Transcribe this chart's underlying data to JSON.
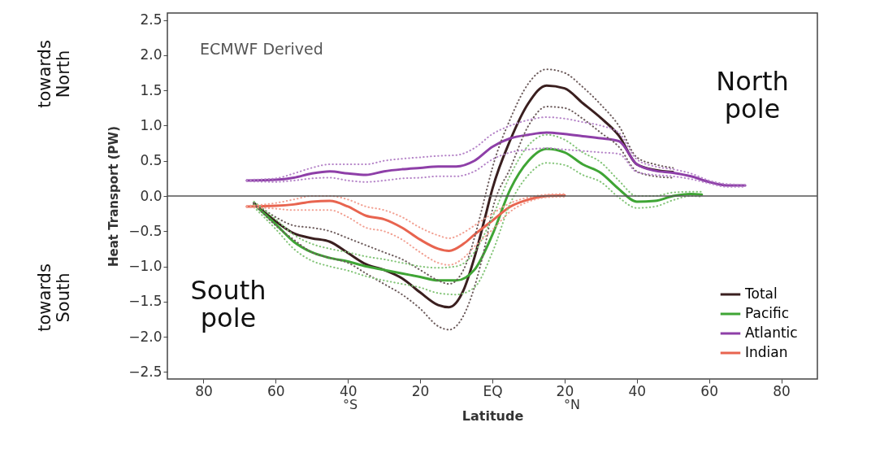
{
  "chart_data": {
    "type": "line",
    "xlabel": "Latitude",
    "ylabel": "Heat Transport (PW)",
    "xlim": [
      -90,
      90
    ],
    "ylim": [
      -2.6,
      2.6
    ],
    "xticks": [
      {
        "value": -80,
        "label": "80"
      },
      {
        "value": -60,
        "label": "60"
      },
      {
        "value": -40,
        "label": "40"
      },
      {
        "value": -20,
        "label": "20"
      },
      {
        "value": 0,
        "label": "EQ"
      },
      {
        "value": 20,
        "label": "20"
      },
      {
        "value": 40,
        "label": "40"
      },
      {
        "value": 60,
        "label": "60"
      },
      {
        "value": 80,
        "label": "80"
      }
    ],
    "yticks": [
      {
        "value": -2.5,
        "label": "−2.5"
      },
      {
        "value": -2,
        "label": "−2.0"
      },
      {
        "value": -1.5,
        "label": "−1.5"
      },
      {
        "value": -1,
        "label": "−1.0"
      },
      {
        "value": -0.5,
        "label": "−0.5"
      },
      {
        "value": 0,
        "label": "0.0"
      },
      {
        "value": 0.5,
        "label": "0.5"
      },
      {
        "value": 1,
        "label": "1.0"
      },
      {
        "value": 1.5,
        "label": "1.5"
      },
      {
        "value": 2,
        "label": "2.0"
      },
      {
        "value": 2.5,
        "label": "2.5"
      }
    ],
    "grid": false,
    "legend": "bottom right",
    "marker": "none",
    "ref_lines": [
      {
        "axis": "y",
        "value": 0,
        "color": "#555555"
      }
    ],
    "annotations": [
      "ECMWF Derived",
      "North pole",
      "South pole",
      "towards North",
      "towards South",
      "°S",
      "°N"
    ],
    "series": [
      {
        "name": "Total",
        "color": "#3a1f1f",
        "line_style": "solid",
        "x": [
          -66,
          -60,
          -55,
          -50,
          -45,
          -40,
          -35,
          -30,
          -25,
          -20,
          -15,
          -12,
          -8,
          -5,
          -2,
          0,
          5,
          10,
          15,
          20,
          25,
          30,
          35,
          40,
          45,
          50
        ],
        "values": [
          -0.1,
          -0.36,
          -0.53,
          -0.6,
          -0.65,
          -0.81,
          -0.97,
          -1.05,
          -1.17,
          -1.37,
          -1.55,
          -1.58,
          -1.34,
          -0.88,
          -0.3,
          0.1,
          0.8,
          1.32,
          1.57,
          1.53,
          1.32,
          1.11,
          0.86,
          0.45,
          0.37,
          0.34
        ]
      },
      {
        "name": "Pacific",
        "color": "#3fa535",
        "line_style": "solid",
        "x": [
          -66,
          -60,
          -55,
          -50,
          -45,
          -40,
          -35,
          -30,
          -25,
          -20,
          -15,
          -10,
          -5,
          0,
          5,
          10,
          15,
          20,
          25,
          30,
          35,
          40,
          45,
          50,
          55,
          58
        ],
        "values": [
          -0.12,
          -0.4,
          -0.65,
          -0.8,
          -0.88,
          -0.93,
          -1.0,
          -1.05,
          -1.1,
          -1.15,
          -1.2,
          -1.2,
          -1.05,
          -0.55,
          0.1,
          0.5,
          0.67,
          0.62,
          0.45,
          0.33,
          0.1,
          -0.08,
          -0.07,
          0.0,
          0.03,
          0.02
        ]
      },
      {
        "name": "Atlantic",
        "color": "#8e3fa8",
        "line_style": "solid",
        "x": [
          -68,
          -60,
          -55,
          -50,
          -45,
          -40,
          -35,
          -30,
          -25,
          -20,
          -15,
          -10,
          -5,
          0,
          5,
          10,
          15,
          20,
          25,
          30,
          35,
          40,
          45,
          50,
          55,
          60,
          65,
          70
        ],
        "values": [
          0.22,
          0.23,
          0.26,
          0.32,
          0.35,
          0.32,
          0.3,
          0.35,
          0.38,
          0.4,
          0.42,
          0.42,
          0.5,
          0.7,
          0.82,
          0.87,
          0.9,
          0.88,
          0.85,
          0.82,
          0.78,
          0.45,
          0.36,
          0.33,
          0.28,
          0.2,
          0.15,
          0.15
        ]
      },
      {
        "name": "Indian",
        "color": "#e8644f",
        "line_style": "solid",
        "x": [
          -68,
          -60,
          -55,
          -50,
          -45,
          -40,
          -35,
          -30,
          -25,
          -20,
          -15,
          -12,
          -8,
          -5,
          0,
          5,
          10,
          15,
          20
        ],
        "values": [
          -0.15,
          -0.14,
          -0.12,
          -0.08,
          -0.07,
          -0.15,
          -0.28,
          -0.33,
          -0.45,
          -0.62,
          -0.75,
          -0.78,
          -0.68,
          -0.55,
          -0.35,
          -0.15,
          -0.05,
          0.0,
          0.01
        ]
      },
      {
        "color": "#6b5a5a",
        "line_style": "dotted",
        "x": [
          -66,
          -60,
          -55,
          -50,
          -45,
          -40,
          -35,
          -30,
          -25,
          -20,
          -15,
          -12,
          -8,
          -5,
          -2,
          0,
          5,
          10,
          15,
          20,
          25,
          30,
          35,
          40,
          45,
          50
        ],
        "values": [
          -0.09,
          -0.3,
          -0.42,
          -0.45,
          -0.5,
          -0.6,
          -0.7,
          -0.8,
          -0.9,
          -1.05,
          -1.2,
          -1.25,
          -1.05,
          -0.6,
          0.0,
          0.4,
          1.1,
          1.6,
          1.8,
          1.75,
          1.55,
          1.3,
          1.0,
          0.55,
          0.45,
          0.4
        ]
      },
      {
        "color": "#6b5a5a",
        "line_style": "dotted",
        "x": [
          -66,
          -60,
          -55,
          -50,
          -45,
          -40,
          -35,
          -30,
          -25,
          -20,
          -15,
          -12,
          -8,
          -5,
          -2,
          0,
          5,
          10,
          15,
          20,
          25,
          30,
          35,
          40,
          45,
          50
        ],
        "values": [
          -0.11,
          -0.42,
          -0.62,
          -0.8,
          -0.88,
          -0.95,
          -1.1,
          -1.25,
          -1.4,
          -1.6,
          -1.85,
          -1.9,
          -1.7,
          -1.3,
          -0.7,
          -0.2,
          0.4,
          1.0,
          1.27,
          1.25,
          1.1,
          0.9,
          0.7,
          0.35,
          0.28,
          0.26
        ]
      },
      {
        "color": "#82c477",
        "line_style": "dotted",
        "x": [
          -66,
          -60,
          -55,
          -50,
          -45,
          -40,
          -35,
          -30,
          -25,
          -20,
          -15,
          -10,
          -5,
          0,
          5,
          10,
          15,
          20,
          25,
          30,
          35,
          40,
          45,
          50,
          55,
          58
        ],
        "values": [
          -0.08,
          -0.33,
          -0.55,
          -0.68,
          -0.75,
          -0.8,
          -0.86,
          -0.9,
          -0.95,
          -1.0,
          -1.02,
          -1.0,
          -0.8,
          -0.3,
          0.3,
          0.72,
          0.87,
          0.8,
          0.62,
          0.48,
          0.22,
          0.0,
          0.0,
          0.05,
          0.06,
          0.06
        ]
      },
      {
        "color": "#82c477",
        "line_style": "dotted",
        "x": [
          -66,
          -60,
          -55,
          -50,
          -45,
          -40,
          -35,
          -30,
          -25,
          -20,
          -15,
          -10,
          -5,
          0,
          5,
          10,
          15,
          20,
          25,
          30,
          35,
          40,
          45,
          50,
          55,
          58
        ],
        "values": [
          -0.16,
          -0.47,
          -0.75,
          -0.92,
          -1.0,
          -1.06,
          -1.14,
          -1.2,
          -1.25,
          -1.3,
          -1.38,
          -1.4,
          -1.3,
          -0.8,
          -0.1,
          0.3,
          0.47,
          0.44,
          0.3,
          0.2,
          -0.02,
          -0.17,
          -0.15,
          -0.06,
          0.0,
          -0.01
        ]
      },
      {
        "color": "#b584c8",
        "line_style": "dotted",
        "x": [
          -68,
          -60,
          -55,
          -50,
          -45,
          -40,
          -35,
          -30,
          -25,
          -20,
          -15,
          -10,
          -5,
          0,
          5,
          10,
          15,
          20,
          25,
          30,
          35,
          40,
          45,
          50,
          55,
          60,
          65,
          70
        ],
        "values": [
          0.23,
          0.25,
          0.32,
          0.4,
          0.45,
          0.45,
          0.45,
          0.5,
          0.53,
          0.55,
          0.57,
          0.58,
          0.68,
          0.88,
          1.0,
          1.08,
          1.12,
          1.1,
          1.05,
          1.0,
          0.9,
          0.52,
          0.42,
          0.38,
          0.32,
          0.22,
          0.17,
          0.16
        ]
      },
      {
        "color": "#b584c8",
        "line_style": "dotted",
        "x": [
          -68,
          -60,
          -55,
          -50,
          -45,
          -40,
          -35,
          -30,
          -25,
          -20,
          -15,
          -10,
          -5,
          0,
          5,
          10,
          15,
          20,
          25,
          30,
          35,
          40,
          45,
          50,
          55,
          60,
          65,
          70
        ],
        "values": [
          0.21,
          0.2,
          0.22,
          0.25,
          0.26,
          0.22,
          0.2,
          0.22,
          0.25,
          0.26,
          0.28,
          0.28,
          0.35,
          0.52,
          0.62,
          0.66,
          0.68,
          0.66,
          0.64,
          0.62,
          0.6,
          0.34,
          0.3,
          0.28,
          0.24,
          0.18,
          0.13,
          0.13
        ]
      },
      {
        "color": "#f2a092",
        "line_style": "dotted",
        "x": [
          -68,
          -60,
          -55,
          -50,
          -45,
          -40,
          -35,
          -30,
          -25,
          -20,
          -15,
          -12,
          -8,
          -5,
          0,
          5,
          10,
          15,
          20
        ],
        "values": [
          -0.14,
          -0.1,
          -0.05,
          0.0,
          0.0,
          -0.05,
          -0.15,
          -0.2,
          -0.3,
          -0.45,
          -0.56,
          -0.6,
          -0.52,
          -0.42,
          -0.25,
          -0.1,
          -0.02,
          0.02,
          0.03
        ]
      },
      {
        "color": "#f2a092",
        "line_style": "dotted",
        "x": [
          -68,
          -60,
          -55,
          -50,
          -45,
          -40,
          -35,
          -30,
          -25,
          -20,
          -15,
          -12,
          -8,
          -5,
          0,
          5,
          10,
          15,
          20
        ],
        "values": [
          -0.16,
          -0.18,
          -0.2,
          -0.2,
          -0.2,
          -0.3,
          -0.45,
          -0.5,
          -0.62,
          -0.8,
          -0.95,
          -0.98,
          -0.88,
          -0.72,
          -0.48,
          -0.22,
          -0.08,
          -0.02,
          -0.01
        ]
      }
    ]
  }
}
